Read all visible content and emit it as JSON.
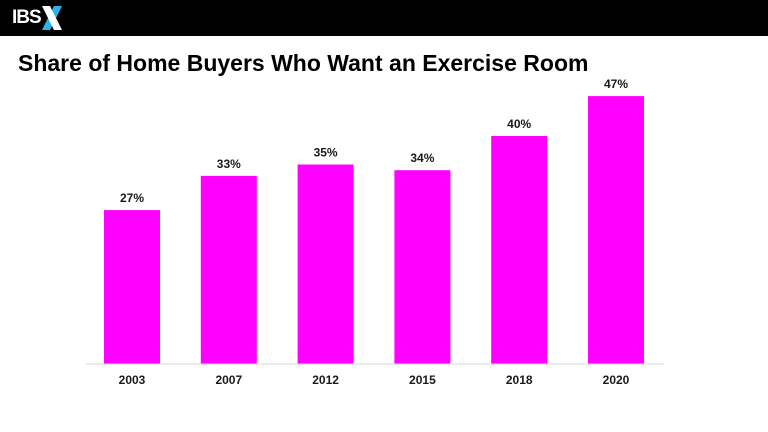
{
  "logo": {
    "text": "IBS",
    "mark": "X",
    "accent_color": "#2ab7e8"
  },
  "header": {
    "title": "Share of Home Buyers Who Want an Exercise Room"
  },
  "chart_data": {
    "type": "bar",
    "categories": [
      "2003",
      "2007",
      "2012",
      "2015",
      "2018",
      "2020"
    ],
    "values": [
      27,
      33,
      35,
      34,
      40,
      47
    ],
    "data_labels": [
      "27%",
      "33%",
      "35%",
      "34%",
      "40%",
      "47%"
    ],
    "unit": "%",
    "bar_color": "#ff00ff",
    "ylim": [
      0,
      55
    ],
    "grid": false,
    "legend": "none"
  }
}
